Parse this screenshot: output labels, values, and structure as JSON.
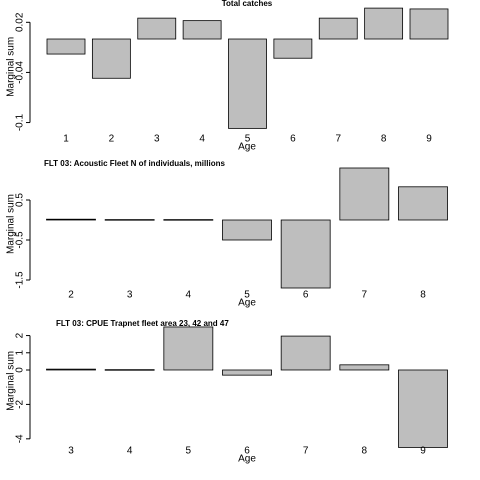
{
  "chart_data": [
    {
      "type": "bar",
      "title": "Total catches",
      "xlabel": "Age",
      "ylabel": "Marginal sum",
      "categories": [
        "1",
        "2",
        "3",
        "4",
        "5",
        "6",
        "7",
        "8",
        "9"
      ],
      "values": [
        -0.018,
        -0.047,
        0.025,
        0.022,
        -0.107,
        -0.023,
        0.025,
        0.037,
        0.036
      ],
      "color": "#bebebe",
      "ylim": [
        -0.11,
        0.04
      ],
      "yticks": [
        0.02,
        -0.04,
        -0.1
      ]
    },
    {
      "type": "bar",
      "title": "FLT 03: Acoustic Fleet   N of individuals, millions",
      "xlabel": "Age",
      "ylabel": "Marginal sum",
      "categories": [
        "2",
        "3",
        "4",
        "5",
        "6",
        "7",
        "8"
      ],
      "values": [
        0.02,
        0.01,
        0.01,
        -0.5,
        -1.7,
        1.3,
        0.83
      ],
      "color": "#bebebe",
      "ylim": [
        -1.8,
        1.4
      ],
      "yticks": [
        0.5,
        -0.5,
        -1.5
      ]
    },
    {
      "type": "bar",
      "title": "FLT 03: CPUE Trapnet fleet area 23, 42 and 47",
      "xlabel": "Age",
      "ylabel": "Marginal sum",
      "categories": [
        "3",
        "4",
        "5",
        "6",
        "7",
        "8",
        "9"
      ],
      "values": [
        0.05,
        0.02,
        2.5,
        -0.3,
        1.97,
        0.3,
        -4.5
      ],
      "color": "#bebebe",
      "ylim": [
        -4.8,
        2.8
      ],
      "yticks": [
        2,
        1,
        0,
        -2,
        -4
      ]
    }
  ]
}
